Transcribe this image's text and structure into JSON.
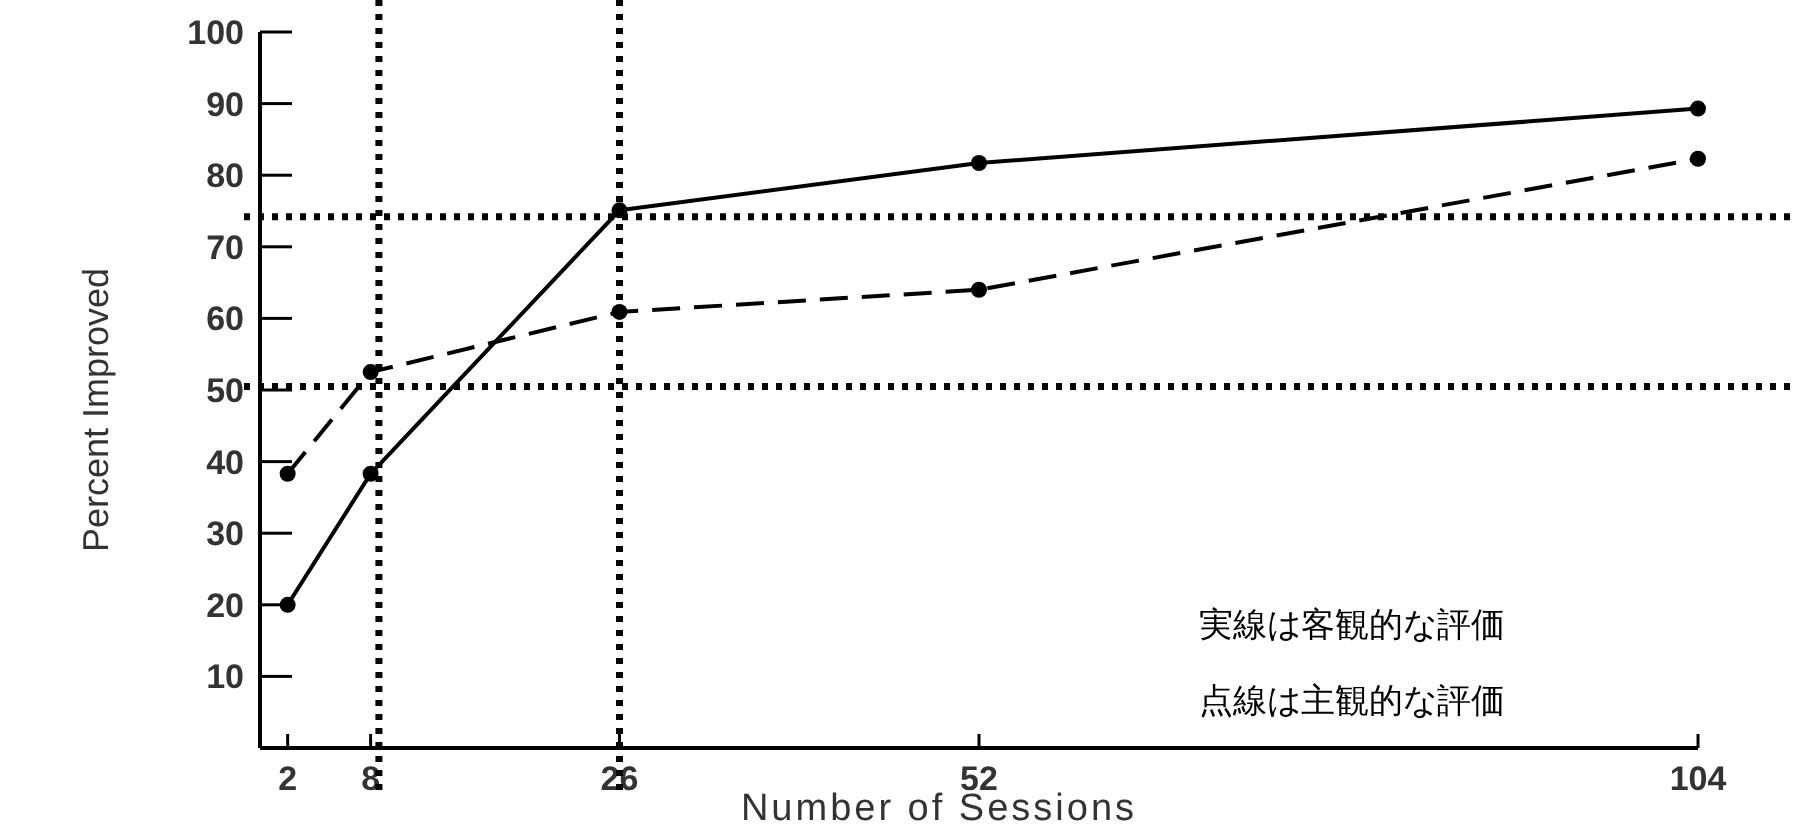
{
  "chart_data": {
    "type": "line",
    "xlabel": "Number of Sessions",
    "ylabel": "Percent Improved",
    "xlim": [
      0,
      104
    ],
    "ylim": [
      0,
      100
    ],
    "xticks": [
      2,
      8,
      26,
      52,
      104
    ],
    "yticks": [
      {
        "value": 0,
        "label": null
      },
      10,
      20,
      30,
      40,
      50,
      60,
      70,
      80,
      90,
      100
    ],
    "marker": "circle",
    "series": [
      {
        "color": "#000000",
        "line_style": "solid",
        "x": [
          2,
          8,
          26,
          52,
          104
        ],
        "values": [
          20,
          38.3,
          75.1,
          81.7,
          89.3
        ]
      },
      {
        "color": "#000000",
        "line_style": "dashed",
        "x": [
          2,
          8,
          26,
          52,
          104
        ],
        "values": [
          38.3,
          52.5,
          60.9,
          64,
          82.3
        ]
      }
    ],
    "ref_lines": [
      {
        "axis": "y",
        "value": 74.2,
        "color": "#000000",
        "line_style": "dotted"
      },
      {
        "axis": "y",
        "value": 50.5,
        "color": "#000000",
        "line_style": "dotted"
      },
      {
        "axis": "x",
        "value": 8.6,
        "color": "#000000",
        "line_style": "dotted"
      },
      {
        "axis": "x",
        "value": 26,
        "color": "#000000",
        "line_style": "dotted"
      }
    ],
    "annotations": [
      "実線は客観的な評価",
      "点線は主観的な評価"
    ]
  }
}
